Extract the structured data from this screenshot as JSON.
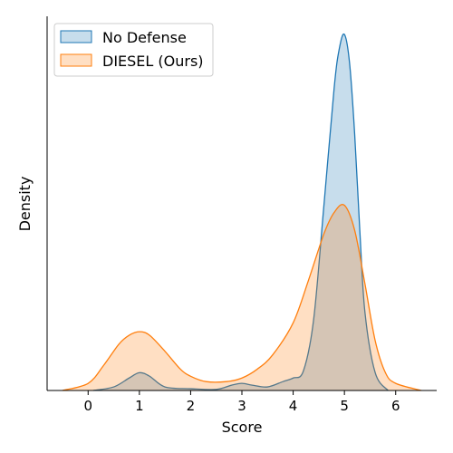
{
  "chart_data": {
    "type": "area",
    "xlabel": "Score",
    "ylabel": "Density",
    "xlim": [
      -0.8,
      6.8
    ],
    "ylim": [
      0,
      1.0
    ],
    "x_ticks": [
      "0",
      "1",
      "2",
      "3",
      "4",
      "5",
      "6"
    ],
    "y_ticks_shown": false,
    "grid": false,
    "legend_position": "top-left",
    "series": [
      {
        "name": "No Defense",
        "color": "#1f77b4",
        "fill_opacity": 0.25,
        "x": [
          0.1,
          0.5,
          0.8,
          1.0,
          1.2,
          1.5,
          2.0,
          2.5,
          2.8,
          3.0,
          3.2,
          3.5,
          3.8,
          4.0,
          4.2,
          4.4,
          4.6,
          4.8,
          4.9,
          5.0,
          5.1,
          5.2,
          5.3,
          5.4,
          5.6,
          5.85
        ],
        "y": [
          0.0,
          0.01,
          0.035,
          0.05,
          0.04,
          0.01,
          0.005,
          0.003,
          0.015,
          0.02,
          0.015,
          0.01,
          0.025,
          0.035,
          0.055,
          0.2,
          0.52,
          0.85,
          0.96,
          1.0,
          0.92,
          0.72,
          0.45,
          0.22,
          0.05,
          0.0
        ]
      },
      {
        "name": "DIESEL (Ours)",
        "color": "#ff7f0e",
        "fill_opacity": 0.25,
        "x": [
          -0.5,
          0.0,
          0.3,
          0.6,
          0.8,
          1.0,
          1.2,
          1.5,
          1.8,
          2.0,
          2.3,
          2.7,
          3.0,
          3.3,
          3.6,
          4.0,
          4.3,
          4.6,
          4.8,
          5.0,
          5.2,
          5.4,
          5.6,
          5.8,
          6.0,
          6.5
        ],
        "y": [
          0.0,
          0.02,
          0.07,
          0.13,
          0.155,
          0.165,
          0.155,
          0.11,
          0.06,
          0.04,
          0.025,
          0.025,
          0.035,
          0.06,
          0.1,
          0.19,
          0.31,
          0.44,
          0.5,
          0.52,
          0.45,
          0.3,
          0.14,
          0.05,
          0.02,
          0.0
        ]
      }
    ]
  }
}
